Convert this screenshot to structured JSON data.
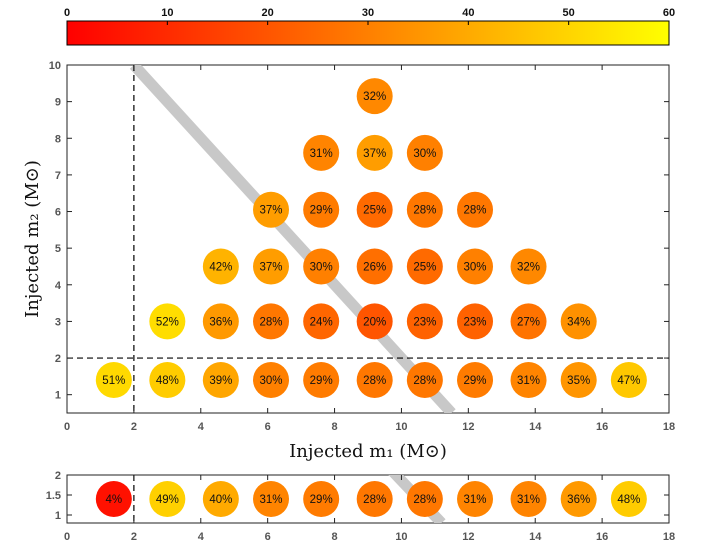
{
  "chart_data": [
    {
      "type": "scatter",
      "xlabel": "Injected m₁ (M⊙)",
      "ylabel": "Injected m₂ (M⊙)",
      "xlim": [
        0,
        18
      ],
      "ylim": [
        0.5,
        10
      ],
      "x_ticks": [
        0,
        2,
        4,
        6,
        8,
        10,
        12,
        14,
        16,
        18
      ],
      "y_ticks": [
        1,
        2,
        3,
        4,
        5,
        6,
        7,
        8,
        9,
        10
      ],
      "colorbar": {
        "ticks": [
          0,
          10,
          20,
          30,
          40,
          50,
          60
        ],
        "range": [
          0,
          60
        ],
        "colors": [
          "#ff0000",
          "#ffff00"
        ]
      },
      "dashed_lines": {
        "x": 2,
        "y": 2
      },
      "band_line": {
        "from": [
          2,
          10
        ],
        "to": [
          11.5,
          0.5
        ],
        "color": "#c8c8c8"
      },
      "points": [
        {
          "x": 1.4,
          "y": 1.4,
          "value": 51,
          "label": "51%"
        },
        {
          "x": 3.0,
          "y": 1.4,
          "value": 48,
          "label": "48%"
        },
        {
          "x": 4.6,
          "y": 1.4,
          "value": 39,
          "label": "39%"
        },
        {
          "x": 6.1,
          "y": 1.4,
          "value": 30,
          "label": "30%"
        },
        {
          "x": 7.6,
          "y": 1.4,
          "value": 29,
          "label": "29%"
        },
        {
          "x": 9.2,
          "y": 1.4,
          "value": 28,
          "label": "28%"
        },
        {
          "x": 10.7,
          "y": 1.4,
          "value": 28,
          "label": "28%"
        },
        {
          "x": 12.2,
          "y": 1.4,
          "value": 29,
          "label": "29%"
        },
        {
          "x": 13.8,
          "y": 1.4,
          "value": 31,
          "label": "31%"
        },
        {
          "x": 15.3,
          "y": 1.4,
          "value": 35,
          "label": "35%"
        },
        {
          "x": 16.8,
          "y": 1.4,
          "value": 47,
          "label": "47%"
        },
        {
          "x": 3.0,
          "y": 3.0,
          "value": 52,
          "label": "52%"
        },
        {
          "x": 4.6,
          "y": 3.0,
          "value": 36,
          "label": "36%"
        },
        {
          "x": 6.1,
          "y": 3.0,
          "value": 28,
          "label": "28%"
        },
        {
          "x": 7.6,
          "y": 3.0,
          "value": 24,
          "label": "24%"
        },
        {
          "x": 9.2,
          "y": 3.0,
          "value": 20,
          "label": "20%"
        },
        {
          "x": 10.7,
          "y": 3.0,
          "value": 23,
          "label": "23%"
        },
        {
          "x": 12.2,
          "y": 3.0,
          "value": 23,
          "label": "23%"
        },
        {
          "x": 13.8,
          "y": 3.0,
          "value": 27,
          "label": "27%"
        },
        {
          "x": 15.3,
          "y": 3.0,
          "value": 34,
          "label": "34%"
        },
        {
          "x": 4.6,
          "y": 4.5,
          "value": 42,
          "label": "42%"
        },
        {
          "x": 6.1,
          "y": 4.5,
          "value": 37,
          "label": "37%"
        },
        {
          "x": 7.6,
          "y": 4.5,
          "value": 30,
          "label": "30%"
        },
        {
          "x": 9.2,
          "y": 4.5,
          "value": 26,
          "label": "26%"
        },
        {
          "x": 10.7,
          "y": 4.5,
          "value": 25,
          "label": "25%"
        },
        {
          "x": 12.2,
          "y": 4.5,
          "value": 30,
          "label": "30%"
        },
        {
          "x": 13.8,
          "y": 4.5,
          "value": 32,
          "label": "32%"
        },
        {
          "x": 6.1,
          "y": 6.05,
          "value": 37,
          "label": "37%"
        },
        {
          "x": 7.6,
          "y": 6.05,
          "value": 29,
          "label": "29%"
        },
        {
          "x": 9.2,
          "y": 6.05,
          "value": 25,
          "label": "25%"
        },
        {
          "x": 10.7,
          "y": 6.05,
          "value": 28,
          "label": "28%"
        },
        {
          "x": 12.2,
          "y": 6.05,
          "value": 28,
          "label": "28%"
        },
        {
          "x": 7.6,
          "y": 7.6,
          "value": 31,
          "label": "31%"
        },
        {
          "x": 9.2,
          "y": 7.6,
          "value": 37,
          "label": "37%"
        },
        {
          "x": 10.7,
          "y": 7.6,
          "value": 30,
          "label": "30%"
        },
        {
          "x": 9.2,
          "y": 9.15,
          "value": 32,
          "label": "32%"
        }
      ]
    },
    {
      "type": "scatter",
      "xlim": [
        0,
        18
      ],
      "ylim": [
        0.8,
        2
      ],
      "x_ticks": [
        0,
        2,
        4,
        6,
        8,
        10,
        12,
        14,
        16,
        18
      ],
      "y_ticks": [
        1,
        1.5,
        2
      ],
      "dashed_lines": {
        "x": 2
      },
      "band_line": {
        "from": [
          9.5,
          2.3
        ],
        "to": [
          11.2,
          0.8
        ],
        "color": "#c8c8c8"
      },
      "points": [
        {
          "x": 1.4,
          "y": 1.4,
          "value": 4,
          "label": "4%"
        },
        {
          "x": 3.0,
          "y": 1.4,
          "value": 49,
          "label": "49%"
        },
        {
          "x": 4.6,
          "y": 1.4,
          "value": 40,
          "label": "40%"
        },
        {
          "x": 6.1,
          "y": 1.4,
          "value": 31,
          "label": "31%"
        },
        {
          "x": 7.6,
          "y": 1.4,
          "value": 29,
          "label": "29%"
        },
        {
          "x": 9.2,
          "y": 1.4,
          "value": 28,
          "label": "28%"
        },
        {
          "x": 10.7,
          "y": 1.4,
          "value": 28,
          "label": "28%"
        },
        {
          "x": 12.2,
          "y": 1.4,
          "value": 31,
          "label": "31%"
        },
        {
          "x": 13.8,
          "y": 1.4,
          "value": 31,
          "label": "31%"
        },
        {
          "x": 15.3,
          "y": 1.4,
          "value": 36,
          "label": "36%"
        },
        {
          "x": 16.8,
          "y": 1.4,
          "value": 48,
          "label": "48%"
        }
      ]
    }
  ]
}
